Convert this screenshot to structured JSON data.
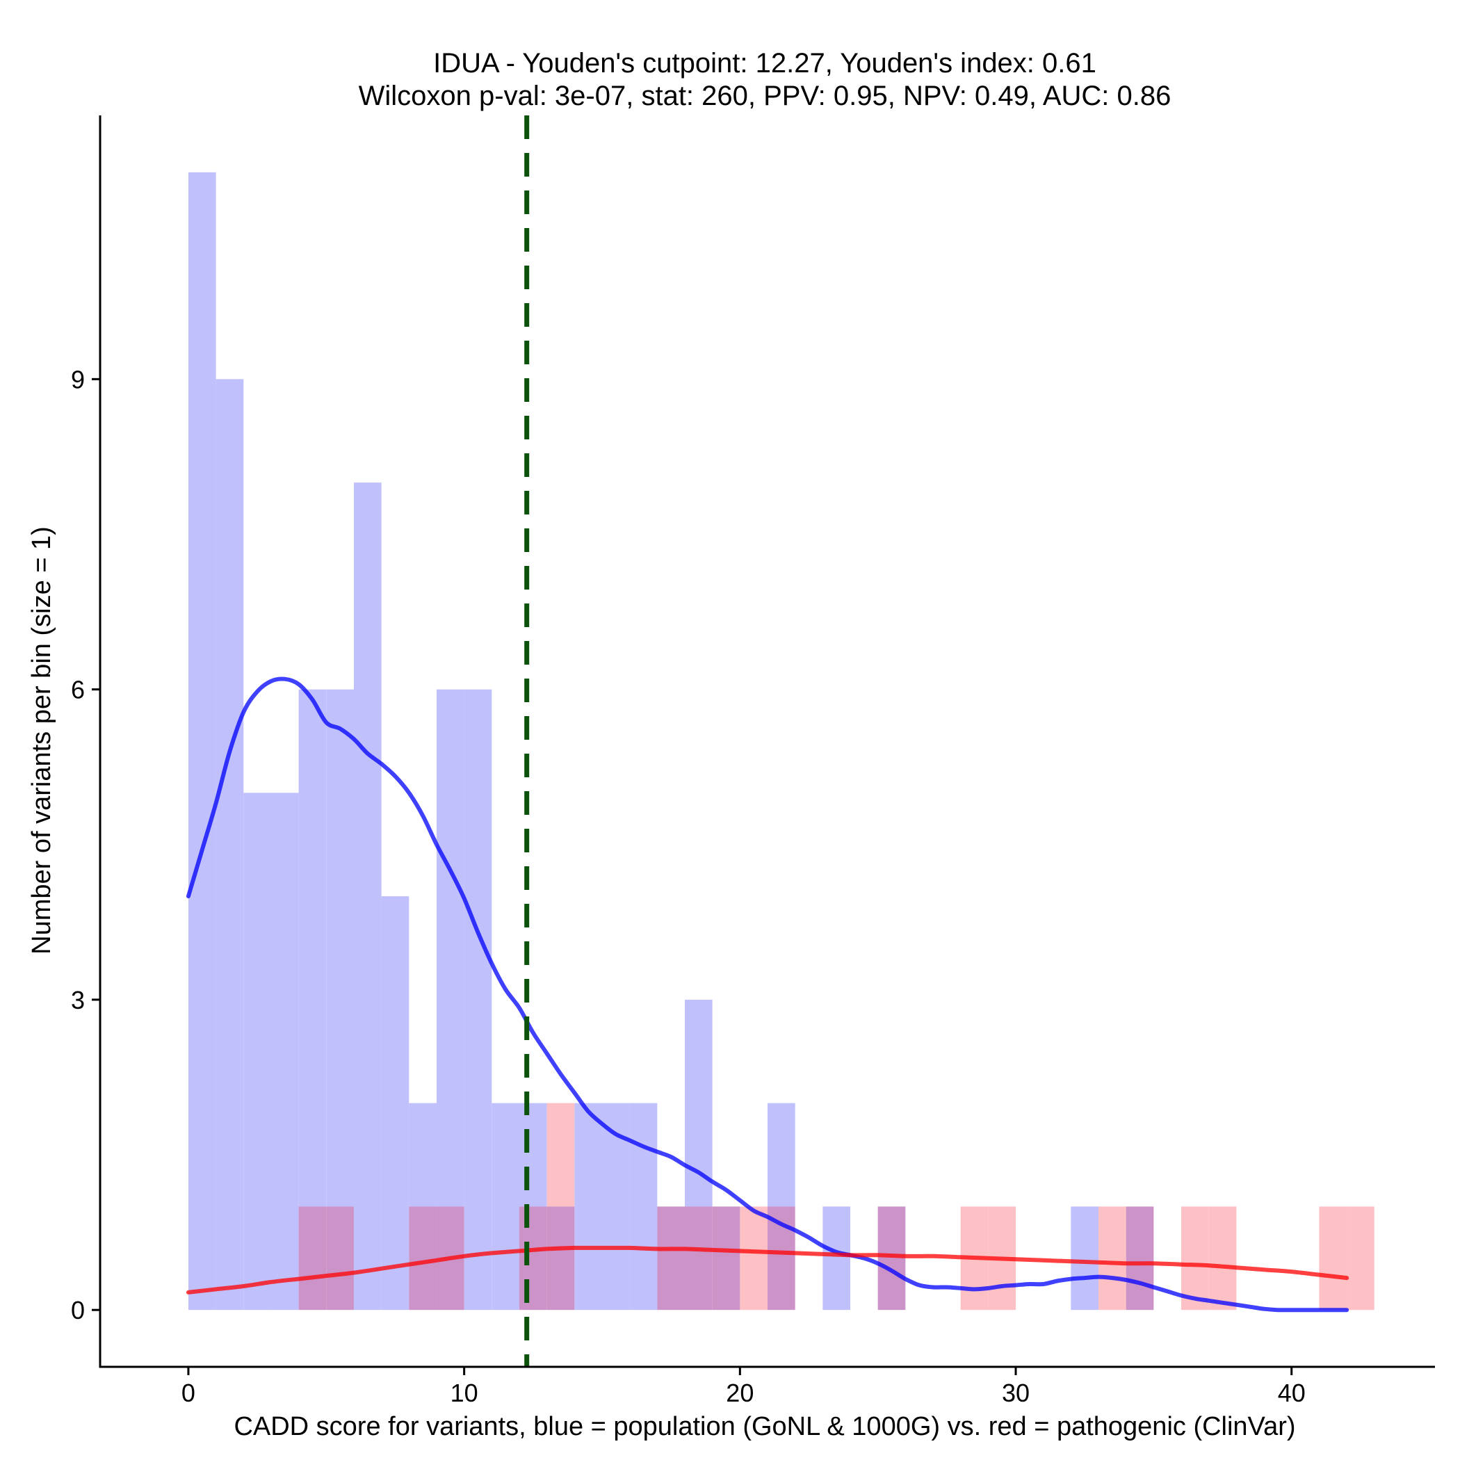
{
  "chart_data": {
    "type": "bar",
    "title": "IDUA - Youden's cutpoint: 12.27, Youden's index: 0.61",
    "subtitle": "Wilcoxon p-val: 3e-07, stat: 260, PPV: 0.95, NPV: 0.49, AUC: 0.86",
    "xlabel": "CADD score for variants, blue = population (GoNL & 1000G) vs. red = pathogenic (ClinVar)",
    "ylabel": "Number of variants per bin (size = 1)",
    "xlim": [
      -3.2,
      45.2
    ],
    "ylim": [
      -0.55,
      11.55
    ],
    "x_ticks": [
      0,
      10,
      20,
      30,
      40
    ],
    "x_tick_labels": [
      "0",
      "10",
      "20",
      "30",
      "40"
    ],
    "y_ticks": [
      0,
      3,
      6,
      9
    ],
    "y_tick_labels": [
      "0",
      "3",
      "6",
      "9"
    ],
    "bin_size": 1,
    "cutpoint": 12.27,
    "colors": {
      "population": "#0000ff",
      "pathogenic": "#ff0000",
      "population_fill": "#c0c0fc",
      "pathogenic_fill": "#fcc0c5",
      "overlap_fill": "#cc93c8",
      "cutpoint": "#0b520b"
    },
    "series": [
      {
        "name": "population (GoNL & 1000G)",
        "color": "#0000ff",
        "bins": [
          [
            0,
            11
          ],
          [
            1,
            9
          ],
          [
            2,
            5
          ],
          [
            3,
            5
          ],
          [
            4,
            6
          ],
          [
            5,
            6
          ],
          [
            6,
            8
          ],
          [
            7,
            4
          ],
          [
            8,
            2
          ],
          [
            9,
            6
          ],
          [
            10,
            6
          ],
          [
            11,
            2
          ],
          [
            12,
            2
          ],
          [
            13,
            1
          ],
          [
            14,
            2
          ],
          [
            15,
            2
          ],
          [
            16,
            2
          ],
          [
            17,
            1
          ],
          [
            18,
            3
          ],
          [
            19,
            1
          ],
          [
            20,
            0
          ],
          [
            21,
            2
          ],
          [
            23,
            1
          ],
          [
            25,
            1
          ],
          [
            32,
            1
          ],
          [
            34,
            1
          ]
        ],
        "density_line": [
          [
            0,
            4.0
          ],
          [
            0.5,
            4.45
          ],
          [
            1,
            4.9
          ],
          [
            1.5,
            5.4
          ],
          [
            2,
            5.78
          ],
          [
            2.5,
            5.98
          ],
          [
            3,
            6.08
          ],
          [
            3.5,
            6.1
          ],
          [
            4,
            6.05
          ],
          [
            4.5,
            5.9
          ],
          [
            5,
            5.68
          ],
          [
            5.5,
            5.62
          ],
          [
            6,
            5.52
          ],
          [
            6.5,
            5.38
          ],
          [
            7,
            5.28
          ],
          [
            7.5,
            5.16
          ],
          [
            8,
            5.0
          ],
          [
            8.5,
            4.78
          ],
          [
            9,
            4.5
          ],
          [
            9.5,
            4.25
          ],
          [
            10,
            3.98
          ],
          [
            10.5,
            3.65
          ],
          [
            11,
            3.35
          ],
          [
            11.5,
            3.1
          ],
          [
            12,
            2.92
          ],
          [
            12.5,
            2.68
          ],
          [
            13,
            2.48
          ],
          [
            13.5,
            2.28
          ],
          [
            14,
            2.1
          ],
          [
            14.5,
            1.92
          ],
          [
            15,
            1.8
          ],
          [
            15.5,
            1.7
          ],
          [
            16,
            1.64
          ],
          [
            16.5,
            1.58
          ],
          [
            17,
            1.53
          ],
          [
            17.5,
            1.48
          ],
          [
            18,
            1.4
          ],
          [
            18.5,
            1.33
          ],
          [
            19,
            1.24
          ],
          [
            19.5,
            1.16
          ],
          [
            20,
            1.06
          ],
          [
            20.5,
            0.96
          ],
          [
            21,
            0.9
          ],
          [
            21.5,
            0.83
          ],
          [
            22,
            0.77
          ],
          [
            22.5,
            0.7
          ],
          [
            23,
            0.62
          ],
          [
            23.5,
            0.56
          ],
          [
            24,
            0.53
          ],
          [
            24.5,
            0.5
          ],
          [
            25,
            0.45
          ],
          [
            25.5,
            0.38
          ],
          [
            26,
            0.3
          ],
          [
            26.5,
            0.24
          ],
          [
            27,
            0.22
          ],
          [
            27.5,
            0.22
          ],
          [
            28,
            0.21
          ],
          [
            28.5,
            0.2
          ],
          [
            29,
            0.21
          ],
          [
            29.5,
            0.23
          ],
          [
            30,
            0.24
          ],
          [
            30.5,
            0.25
          ],
          [
            31,
            0.25
          ],
          [
            31.5,
            0.28
          ],
          [
            32,
            0.3
          ],
          [
            32.5,
            0.31
          ],
          [
            33,
            0.32
          ],
          [
            33.5,
            0.31
          ],
          [
            34,
            0.29
          ],
          [
            34.5,
            0.26
          ],
          [
            35,
            0.22
          ],
          [
            35.5,
            0.18
          ],
          [
            36,
            0.14
          ],
          [
            36.5,
            0.11
          ],
          [
            37,
            0.09
          ],
          [
            37.5,
            0.07
          ],
          [
            38,
            0.05
          ],
          [
            38.5,
            0.03
          ],
          [
            39,
            0.01
          ],
          [
            39.5,
            0.0
          ],
          [
            40,
            0.0
          ],
          [
            41,
            0.0
          ],
          [
            42,
            0.0
          ]
        ]
      },
      {
        "name": "pathogenic (ClinVar)",
        "color": "#ff0000",
        "bins": [
          [
            4,
            1
          ],
          [
            5,
            1
          ],
          [
            8,
            1
          ],
          [
            9,
            1
          ],
          [
            12,
            1
          ],
          [
            13,
            2
          ],
          [
            17,
            1
          ],
          [
            18,
            1
          ],
          [
            19,
            1
          ],
          [
            20,
            1
          ],
          [
            21,
            1
          ],
          [
            25,
            1
          ],
          [
            28,
            1
          ],
          [
            29,
            1
          ],
          [
            33,
            1
          ],
          [
            34,
            1
          ],
          [
            36,
            1
          ],
          [
            37,
            1
          ],
          [
            41,
            1
          ],
          [
            42,
            1
          ]
        ],
        "density_line": [
          [
            0,
            0.17
          ],
          [
            1,
            0.2
          ],
          [
            2,
            0.23
          ],
          [
            3,
            0.27
          ],
          [
            4,
            0.3
          ],
          [
            5,
            0.33
          ],
          [
            6,
            0.36
          ],
          [
            7,
            0.4
          ],
          [
            8,
            0.44
          ],
          [
            9,
            0.48
          ],
          [
            10,
            0.52
          ],
          [
            11,
            0.55
          ],
          [
            12,
            0.57
          ],
          [
            13,
            0.59
          ],
          [
            14,
            0.6
          ],
          [
            15,
            0.6
          ],
          [
            16,
            0.6
          ],
          [
            17,
            0.59
          ],
          [
            18,
            0.59
          ],
          [
            19,
            0.58
          ],
          [
            20,
            0.57
          ],
          [
            21,
            0.56
          ],
          [
            22,
            0.55
          ],
          [
            23,
            0.54
          ],
          [
            24,
            0.53
          ],
          [
            25,
            0.53
          ],
          [
            26,
            0.52
          ],
          [
            27,
            0.52
          ],
          [
            28,
            0.51
          ],
          [
            29,
            0.5
          ],
          [
            30,
            0.49
          ],
          [
            31,
            0.48
          ],
          [
            32,
            0.47
          ],
          [
            33,
            0.46
          ],
          [
            34,
            0.45
          ],
          [
            35,
            0.45
          ],
          [
            36,
            0.44
          ],
          [
            37,
            0.43
          ],
          [
            38,
            0.41
          ],
          [
            39,
            0.39
          ],
          [
            40,
            0.37
          ],
          [
            41,
            0.34
          ],
          [
            42,
            0.31
          ]
        ]
      }
    ]
  }
}
